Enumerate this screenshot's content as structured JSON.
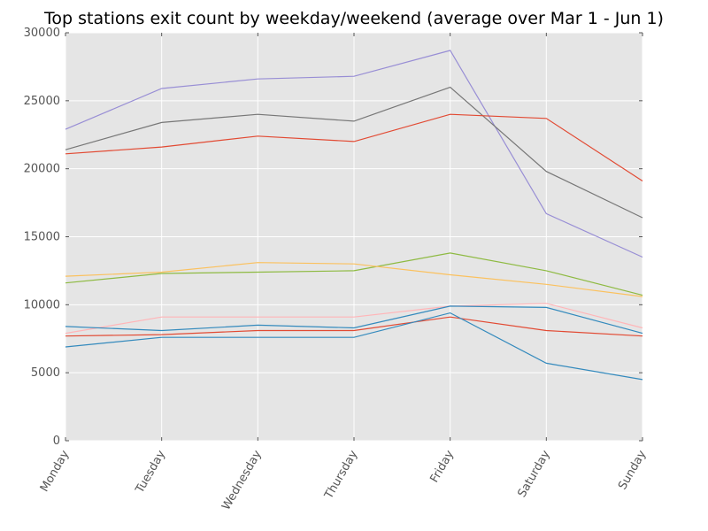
{
  "chart_data": {
    "type": "line",
    "title": "Top stations exit count by weekday/weekend (average over Mar 1 - Jun 1)",
    "xlabel": "",
    "ylabel": "",
    "categories": [
      "Monday",
      "Tuesday",
      "Wednesday",
      "Thursday",
      "Friday",
      "Saturday",
      "Sunday"
    ],
    "ylim": [
      0,
      30000
    ],
    "yticks": [
      0,
      5000,
      10000,
      15000,
      20000,
      25000,
      30000
    ],
    "grid": true,
    "series": [
      {
        "color": "#988ED5",
        "values": [
          22900,
          25900,
          26600,
          26800,
          28700,
          16700,
          13500
        ]
      },
      {
        "color": "#777777",
        "values": [
          21400,
          23400,
          24000,
          23500,
          26000,
          19800,
          16400
        ]
      },
      {
        "color": "#E24A33",
        "values": [
          21100,
          21600,
          22400,
          22000,
          24000,
          23700,
          19100
        ]
      },
      {
        "color": "#8EBA42",
        "values": [
          11600,
          12300,
          12400,
          12500,
          13800,
          12500,
          10700
        ]
      },
      {
        "color": "#FBC15E",
        "values": [
          12100,
          12400,
          13100,
          13000,
          12200,
          11500,
          10600
        ]
      },
      {
        "color": "#FFB5B8",
        "values": [
          7900,
          9100,
          9100,
          9100,
          9900,
          10100,
          8300
        ]
      },
      {
        "color": "#348ABD",
        "values": [
          8400,
          8100,
          8500,
          8300,
          9900,
          9800,
          7900
        ]
      },
      {
        "color": "#E24A33",
        "values": [
          7700,
          7800,
          8100,
          8100,
          9100,
          8100,
          7700
        ]
      },
      {
        "color": "#348ABD",
        "values": [
          6900,
          7600,
          7600,
          7600,
          9400,
          5700,
          4500
        ]
      }
    ]
  }
}
